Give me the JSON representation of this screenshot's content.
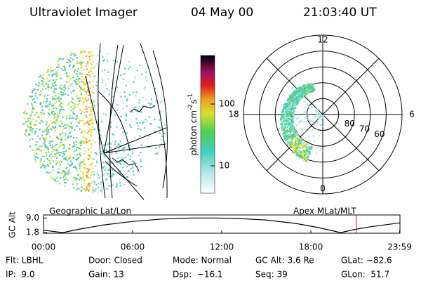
{
  "header": {
    "title": "Ultraviolet Imager",
    "date": "04 May 00",
    "time": "21:03:40 UT"
  },
  "colorbar": {
    "label_parts": [
      "photon cm",
      "-2",
      "s",
      "-1"
    ],
    "log": true,
    "clim": [
      3.6,
      610
    ],
    "ticks": [
      10,
      100
    ]
  },
  "polar": {
    "lat_range": [
      40,
      90
    ],
    "lat_ticks": [
      80,
      70,
      60
    ],
    "hour_labels": [
      {
        "value": 12,
        "label": "12"
      },
      {
        "value": 6,
        "label": "6"
      },
      {
        "value": 0,
        "label": "0"
      },
      {
        "value": 18,
        "label": "18"
      }
    ]
  },
  "captions": {
    "left": "Geographic Lat/Lon",
    "right": "Apex MLat/MLT"
  },
  "chart_data": {
    "type": "line",
    "y_label": "GC Alt",
    "color": "#000000",
    "x": [
      0,
      1.3,
      2.5,
      4,
      6,
      8,
      10,
      11.5,
      13,
      15,
      17,
      18.5,
      20,
      21,
      22,
      23.98
    ],
    "values": [
      3.0,
      1.8,
      3.6,
      5.5,
      7.3,
      8.5,
      9.0,
      9.0,
      8.8,
      8.0,
      6.3,
      4.3,
      1.8,
      3.4,
      4.7,
      6.6
    ],
    "xlim": [
      0,
      24
    ],
    "ylim": [
      1.5,
      10.5
    ],
    "xticks": [
      {
        "value": 0,
        "label": "00:00"
      },
      {
        "value": 6,
        "label": "06:00"
      },
      {
        "value": 12,
        "label": "12:00"
      },
      {
        "value": 18,
        "label": "18:00"
      },
      {
        "value": 23.98,
        "label": "23:59"
      }
    ],
    "yticks": [
      {
        "value": 9.0,
        "label": "9.0"
      },
      {
        "value": 1.8,
        "label": "1.8"
      }
    ],
    "marker_x": 21.06,
    "marker_color": "#d01010"
  },
  "footer": {
    "rows": [
      [
        "Flt: LBHL",
        "Door: Closed",
        "Mode: Normal",
        "GC Alt: 3.6 Re",
        "GLat: −82.6"
      ],
      [
        "IP:  9.0",
        "Gain: 13",
        "Dsp:  −16.1",
        "Seq: 39",
        "GLon:  51.7"
      ]
    ]
  }
}
